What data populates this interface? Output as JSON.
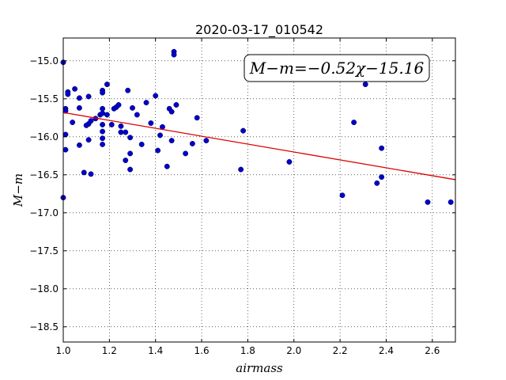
{
  "chart_data": {
    "type": "scatter",
    "title": "2020-03-17_010542",
    "xlabel": "airmass",
    "ylabel": "M−m",
    "xlim": [
      1.0,
      2.7
    ],
    "ylim": [
      -18.7,
      -14.7
    ],
    "y_inverted": true,
    "grid": true,
    "x_ticks": [
      "1.0",
      "1.2",
      "1.4",
      "1.6",
      "1.8",
      "2.0",
      "2.2",
      "2.4",
      "2.6"
    ],
    "y_ticks": [
      "−15.0",
      "−15.5",
      "−16.0",
      "−16.5",
      "−17.0",
      "−17.5",
      "−18.0",
      "−18.5"
    ],
    "annotation": "M−m=−0.52χ−15.16",
    "fit": {
      "slope": -0.52,
      "intercept": -15.16,
      "color": "#dd0000"
    },
    "series": [
      {
        "marker_color": "#0000cc",
        "points": [
          [
            1.0,
            -15.02
          ],
          [
            1.01,
            -15.63
          ],
          [
            1.01,
            -15.66
          ],
          [
            1.01,
            -15.97
          ],
          [
            1.01,
            -16.17
          ],
          [
            1.0,
            -16.8
          ],
          [
            1.02,
            -15.41
          ],
          [
            1.02,
            -15.44
          ],
          [
            1.04,
            -15.81
          ],
          [
            1.05,
            -15.37
          ],
          [
            1.07,
            -15.49
          ],
          [
            1.07,
            -15.62
          ],
          [
            1.07,
            -16.11
          ],
          [
            1.09,
            -16.47
          ],
          [
            1.1,
            -15.85
          ],
          [
            1.11,
            -15.83
          ],
          [
            1.11,
            -16.04
          ],
          [
            1.11,
            -15.47
          ],
          [
            1.12,
            -15.79
          ],
          [
            1.12,
            -16.49
          ],
          [
            1.14,
            -15.76
          ],
          [
            1.16,
            -15.71
          ],
          [
            1.17,
            -15.63
          ],
          [
            1.17,
            -15.69
          ],
          [
            1.17,
            -15.84
          ],
          [
            1.17,
            -15.93
          ],
          [
            1.17,
            -16.02
          ],
          [
            1.17,
            -16.1
          ],
          [
            1.17,
            -15.39
          ],
          [
            1.17,
            -15.42
          ],
          [
            1.19,
            -15.71
          ],
          [
            1.19,
            -15.31
          ],
          [
            1.21,
            -15.84
          ],
          [
            1.22,
            -15.63
          ],
          [
            1.23,
            -15.61
          ],
          [
            1.24,
            -15.58
          ],
          [
            1.25,
            -15.94
          ],
          [
            1.25,
            -15.86
          ],
          [
            1.27,
            -15.94
          ],
          [
            1.27,
            -16.31
          ],
          [
            1.28,
            -15.39
          ],
          [
            1.29,
            -16.01
          ],
          [
            1.29,
            -16.22
          ],
          [
            1.29,
            -16.43
          ],
          [
            1.3,
            -15.62
          ],
          [
            1.32,
            -15.71
          ],
          [
            1.34,
            -16.1
          ],
          [
            1.36,
            -15.55
          ],
          [
            1.38,
            -15.82
          ],
          [
            1.4,
            -15.46
          ],
          [
            1.41,
            -16.18
          ],
          [
            1.42,
            -15.98
          ],
          [
            1.43,
            -15.87
          ],
          [
            1.45,
            -16.39
          ],
          [
            1.46,
            -15.63
          ],
          [
            1.47,
            -15.67
          ],
          [
            1.47,
            -16.05
          ],
          [
            1.48,
            -14.88
          ],
          [
            1.48,
            -14.92
          ],
          [
            1.49,
            -15.58
          ],
          [
            1.53,
            -16.22
          ],
          [
            1.56,
            -16.09
          ],
          [
            1.58,
            -15.75
          ],
          [
            1.62,
            -16.05
          ],
          [
            1.77,
            -16.43
          ],
          [
            1.78,
            -15.92
          ],
          [
            1.98,
            -16.33
          ],
          [
            2.21,
            -16.77
          ],
          [
            2.26,
            -15.81
          ],
          [
            2.31,
            -15.31
          ],
          [
            2.36,
            -16.61
          ],
          [
            2.38,
            -16.53
          ],
          [
            2.38,
            -16.15
          ],
          [
            2.58,
            -16.86
          ],
          [
            2.68,
            -16.86
          ]
        ]
      }
    ]
  }
}
